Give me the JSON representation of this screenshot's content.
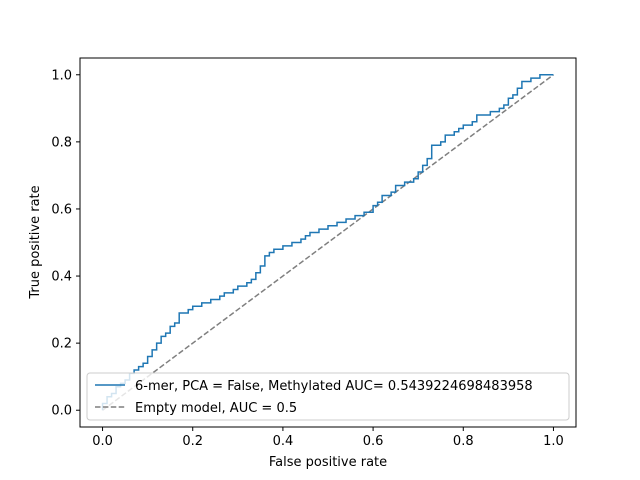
{
  "chart_data": {
    "type": "line",
    "xlabel": "False positive rate",
    "ylabel": "True positive rate",
    "xlim": [
      -0.05,
      1.05
    ],
    "ylim": [
      -0.05,
      1.05
    ],
    "xticks": [
      0.0,
      0.2,
      0.4,
      0.6,
      0.8,
      1.0
    ],
    "yticks": [
      0.0,
      0.2,
      0.4,
      0.6,
      0.8,
      1.0
    ],
    "xtick_labels": [
      "0.0",
      "0.2",
      "0.4",
      "0.6",
      "0.8",
      "1.0"
    ],
    "ytick_labels": [
      "0.0",
      "0.2",
      "0.4",
      "0.6",
      "0.8",
      "1.0"
    ],
    "grid": false,
    "legend_position": "lower right",
    "series": [
      {
        "name": "6-mer, PCA = False,  Methylated AUC= 0.5439224698483958",
        "color": "#1f77b4",
        "style": "solid",
        "x": [
          0.0,
          0.0,
          0.01,
          0.01,
          0.02,
          0.02,
          0.03,
          0.03,
          0.04,
          0.04,
          0.05,
          0.05,
          0.06,
          0.06,
          0.07,
          0.07,
          0.08,
          0.08,
          0.09,
          0.09,
          0.1,
          0.1,
          0.11,
          0.11,
          0.12,
          0.12,
          0.13,
          0.13,
          0.14,
          0.14,
          0.15,
          0.15,
          0.16,
          0.16,
          0.17,
          0.17,
          0.19,
          0.19,
          0.2,
          0.2,
          0.22,
          0.22,
          0.24,
          0.24,
          0.26,
          0.26,
          0.27,
          0.27,
          0.29,
          0.29,
          0.3,
          0.3,
          0.32,
          0.32,
          0.33,
          0.33,
          0.34,
          0.34,
          0.35,
          0.35,
          0.36,
          0.36,
          0.37,
          0.37,
          0.38,
          0.38,
          0.4,
          0.4,
          0.42,
          0.42,
          0.44,
          0.44,
          0.45,
          0.45,
          0.46,
          0.46,
          0.48,
          0.48,
          0.5,
          0.5,
          0.52,
          0.52,
          0.54,
          0.54,
          0.56,
          0.56,
          0.58,
          0.58,
          0.6,
          0.6,
          0.61,
          0.61,
          0.62,
          0.62,
          0.64,
          0.64,
          0.65,
          0.65,
          0.67,
          0.67,
          0.69,
          0.69,
          0.7,
          0.7,
          0.71,
          0.71,
          0.72,
          0.72,
          0.73,
          0.73,
          0.75,
          0.75,
          0.76,
          0.76,
          0.78,
          0.78,
          0.79,
          0.79,
          0.8,
          0.8,
          0.82,
          0.82,
          0.83,
          0.83,
          0.86,
          0.86,
          0.88,
          0.88,
          0.89,
          0.89,
          0.9,
          0.9,
          0.91,
          0.91,
          0.92,
          0.92,
          0.93,
          0.93,
          0.95,
          0.95,
          0.97,
          0.97,
          1.0
        ],
        "y": [
          0.0,
          0.02,
          0.02,
          0.04,
          0.04,
          0.05,
          0.05,
          0.07,
          0.07,
          0.08,
          0.08,
          0.09,
          0.09,
          0.11,
          0.11,
          0.12,
          0.12,
          0.13,
          0.13,
          0.14,
          0.14,
          0.16,
          0.16,
          0.18,
          0.18,
          0.2,
          0.2,
          0.22,
          0.22,
          0.23,
          0.23,
          0.25,
          0.25,
          0.26,
          0.26,
          0.29,
          0.29,
          0.3,
          0.3,
          0.31,
          0.31,
          0.32,
          0.32,
          0.33,
          0.33,
          0.34,
          0.34,
          0.35,
          0.35,
          0.36,
          0.36,
          0.37,
          0.37,
          0.38,
          0.38,
          0.39,
          0.39,
          0.41,
          0.41,
          0.43,
          0.43,
          0.46,
          0.46,
          0.47,
          0.47,
          0.48,
          0.48,
          0.49,
          0.49,
          0.5,
          0.5,
          0.51,
          0.51,
          0.52,
          0.52,
          0.53,
          0.53,
          0.54,
          0.54,
          0.55,
          0.55,
          0.56,
          0.56,
          0.57,
          0.57,
          0.58,
          0.58,
          0.59,
          0.59,
          0.61,
          0.61,
          0.62,
          0.62,
          0.64,
          0.64,
          0.65,
          0.65,
          0.67,
          0.67,
          0.68,
          0.68,
          0.69,
          0.69,
          0.71,
          0.71,
          0.73,
          0.73,
          0.75,
          0.75,
          0.79,
          0.79,
          0.8,
          0.8,
          0.82,
          0.82,
          0.83,
          0.83,
          0.84,
          0.84,
          0.85,
          0.85,
          0.86,
          0.86,
          0.88,
          0.88,
          0.89,
          0.89,
          0.9,
          0.9,
          0.91,
          0.91,
          0.93,
          0.93,
          0.94,
          0.94,
          0.96,
          0.96,
          0.98,
          0.98,
          0.99,
          0.99,
          1.0,
          1.0
        ]
      },
      {
        "name": "Empty model, AUC = 0.5",
        "color": "#7f7f7f",
        "style": "dashed",
        "x": [
          0.0,
          1.0
        ],
        "y": [
          0.0,
          1.0
        ]
      }
    ]
  }
}
